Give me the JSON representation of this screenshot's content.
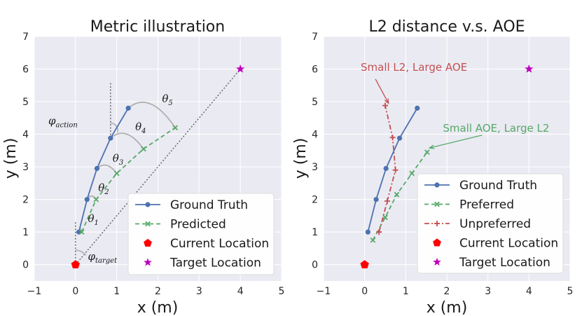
{
  "colors": {
    "panel_bg": "#eaeaf2",
    "grid": "#ffffff",
    "ground_truth": "#4c72b0",
    "predicted": "#55a868",
    "unpreferred": "#c44e52",
    "current": "#ff0000",
    "target": "#bf00bf",
    "helper": "#808080",
    "arc": "#b0b0b0"
  },
  "chart_data": [
    {
      "type": "line",
      "title": "Metric illustration",
      "xlabel": "x (m)",
      "ylabel": "y (m)",
      "xlim": [
        -1,
        5
      ],
      "ylim": [
        -0.5,
        7
      ],
      "xticks": [
        -1,
        0,
        1,
        2,
        3,
        4,
        5
      ],
      "yticks": [
        0,
        1,
        2,
        3,
        4,
        5,
        6,
        7
      ],
      "grid": true,
      "legend_position": "bottom-right",
      "series": [
        {
          "name": "Ground Truth",
          "style": "solid",
          "marker": "circle",
          "color": "#4c72b0",
          "x": [
            0.08,
            0.28,
            0.52,
            0.85,
            1.28
          ],
          "y": [
            1.0,
            2.0,
            2.95,
            3.88,
            4.8
          ]
        },
        {
          "name": "Predicted",
          "style": "dashed",
          "marker": "x",
          "color": "#55a868",
          "x": [
            0.15,
            0.5,
            1.0,
            1.65,
            2.42
          ],
          "y": [
            1.0,
            2.0,
            2.8,
            3.55,
            4.2
          ]
        }
      ],
      "points": [
        {
          "name": "Current Location",
          "marker": "pentagon",
          "color": "#ff0000",
          "x": 0,
          "y": 0
        },
        {
          "name": "Target Location",
          "marker": "star",
          "color": "#bf00bf",
          "x": 4,
          "y": 6
        }
      ],
      "angle_labels": [
        {
          "base": "θ",
          "sub": "1",
          "x": 0.3,
          "y": 1.3
        },
        {
          "base": "θ",
          "sub": "2",
          "x": 0.55,
          "y": 2.25
        },
        {
          "base": "θ",
          "sub": "3",
          "x": 0.9,
          "y": 3.15
        },
        {
          "base": "θ",
          "sub": "4",
          "x": 1.45,
          "y": 4.12
        },
        {
          "base": "θ",
          "sub": "5",
          "x": 2.1,
          "y": 4.98
        }
      ],
      "phi_labels": [
        {
          "base": "φ",
          "sub": "action",
          "x": 0.05,
          "y": 4.3
        },
        {
          "base": "φ",
          "sub": "target",
          "x": 0.3,
          "y": 0.15
        }
      ]
    },
    {
      "type": "line",
      "title": "L2 distance v.s. AOE",
      "xlabel": "x (m)",
      "ylabel": "y (m)",
      "xlim": [
        -1,
        5
      ],
      "ylim": [
        -0.5,
        7
      ],
      "xticks": [
        -1,
        0,
        1,
        2,
        3,
        4,
        5
      ],
      "yticks": [
        0,
        1,
        2,
        3,
        4,
        5,
        6,
        7
      ],
      "grid": true,
      "legend_position": "bottom-right",
      "series": [
        {
          "name": "Ground Truth",
          "style": "solid",
          "marker": "circle",
          "color": "#4c72b0",
          "x": [
            0.08,
            0.28,
            0.52,
            0.85,
            1.28
          ],
          "y": [
            1.0,
            2.0,
            2.95,
            3.88,
            4.8
          ]
        },
        {
          "name": "Preferred",
          "style": "dashed",
          "marker": "x",
          "color": "#55a868",
          "x": [
            0.2,
            0.5,
            0.78,
            1.15,
            1.52
          ],
          "y": [
            0.75,
            1.45,
            2.15,
            2.8,
            3.45
          ]
        },
        {
          "name": "Unpreferred",
          "style": "dashdot",
          "marker": "plus",
          "color": "#c44e52",
          "x": [
            0.35,
            0.55,
            0.75,
            0.68,
            0.5
          ],
          "y": [
            1.0,
            1.95,
            2.9,
            3.9,
            4.88
          ]
        }
      ],
      "points": [
        {
          "name": "Current Location",
          "marker": "pentagon",
          "color": "#ff0000",
          "x": 0,
          "y": 0
        },
        {
          "name": "Target Location",
          "marker": "star",
          "color": "#bf00bf",
          "x": 4,
          "y": 6
        }
      ],
      "annotations": [
        {
          "text": "Small L2, Large AOE",
          "color": "#c44e52",
          "text_x": 1.2,
          "text_y": 5.95,
          "target_x": 0.58,
          "target_y": 4.95
        },
        {
          "text": "Small AOE, Large L2",
          "color": "#55a868",
          "text_x": 3.2,
          "text_y": 4.08,
          "target_x": 1.58,
          "target_y": 3.58
        }
      ]
    }
  ]
}
